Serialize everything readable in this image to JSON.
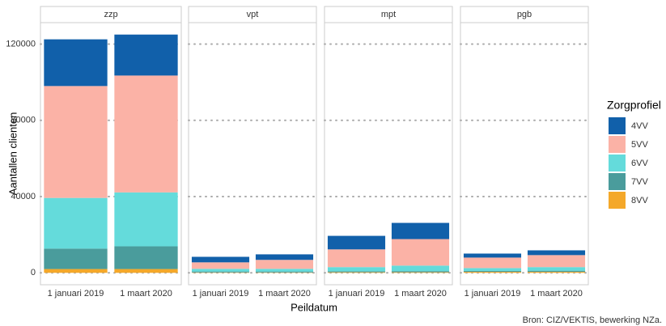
{
  "chart_data": {
    "type": "bar",
    "stacked": true,
    "y_label": "Aantallen clienten",
    "x_label": "Peildatum",
    "caption": "Bron: CIZ/VEKTIS, bewerking NZa.",
    "legend_title": "Zorgprofiel",
    "ylim": [
      -6250,
      131250
    ],
    "yticks": [
      0,
      40000,
      80000,
      120000
    ],
    "grid": true,
    "facets": [
      {
        "title": "zzp",
        "categories": [
          "1 januari 2019",
          "1 maart 2020"
        ]
      },
      {
        "title": "vpt",
        "categories": [
          "1 januari 2019",
          "1 maart 2020"
        ]
      },
      {
        "title": "mpt",
        "categories": [
          "1 januari 2019",
          "1 maart 2020"
        ]
      },
      {
        "title": "pgb",
        "categories": [
          "1 januari 2019",
          "1 maart 2020"
        ]
      }
    ],
    "series": [
      {
        "name": "4VV",
        "color": "#1160aa",
        "values": [
          [
            24500,
            21500
          ],
          [
            2900,
            2900
          ],
          [
            7100,
            8500
          ],
          [
            2100,
            2500
          ]
        ]
      },
      {
        "name": "5VV",
        "color": "#fbb2a6",
        "values": [
          [
            58700,
            61300
          ],
          [
            3400,
            4700
          ],
          [
            9300,
            13900
          ],
          [
            5500,
            6300
          ]
        ]
      },
      {
        "name": "6VV",
        "color": "#64dbdb",
        "values": [
          [
            26600,
            28300
          ],
          [
            1400,
            1400
          ],
          [
            2200,
            2900
          ],
          [
            1500,
            1900
          ]
        ]
      },
      {
        "name": "7VV",
        "color": "#4a9c9c",
        "values": [
          [
            10700,
            11900
          ],
          [
            500,
            500
          ],
          [
            500,
            600
          ],
          [
            500,
            600
          ]
        ]
      },
      {
        "name": "8VV",
        "color": "#f4a82a",
        "values": [
          [
            2000,
            2000
          ],
          [
            200,
            200
          ],
          [
            300,
            300
          ],
          [
            500,
            500
          ]
        ]
      }
    ]
  }
}
